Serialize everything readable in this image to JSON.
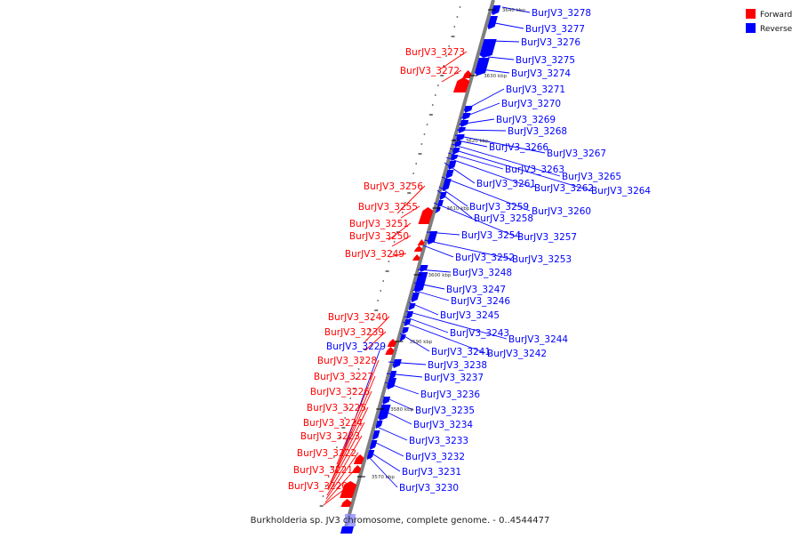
{
  "caption": "Burkholderia sp. JV3 chromosome, complete genome. - 0..4544477",
  "colors": {
    "forward": "#ff0000",
    "reverse": "#0000ff",
    "axis": "#7f7f7f",
    "tick": "#000000"
  },
  "legend": [
    {
      "label": "Forward",
      "color": "#ff0000"
    },
    {
      "label": "Reverse",
      "color": "#0000ff"
    }
  ],
  "scale_ticks": [
    "3640 kbp",
    "3630 kbp",
    "3620 kbp",
    "3610 kbp",
    "3600 kbp",
    "3590 kbp",
    "3580 kbp",
    "3570 kbp"
  ],
  "reverse_genes": [
    "BurJV3_3278",
    "BurJV3_3277",
    "BurJV3_3276",
    "BurJV3_3275",
    "BurJV3_3274",
    "BurJV3_3271",
    "BurJV3_3270",
    "BurJV3_3269",
    "BurJV3_3268",
    "BurJV3_3267",
    "BurJV3_3266",
    "BurJV3_3265",
    "BurJV3_3264",
    "BurJV3_3263",
    "BurJV3_3262",
    "BurJV3_3261",
    "BurJV3_3260",
    "BurJV3_3259",
    "BurJV3_3258",
    "BurJV3_3257",
    "BurJV3_3254",
    "BurJV3_3253",
    "BurJV3_3252",
    "BurJV3_3248",
    "BurJV3_3247",
    "BurJV3_3246",
    "BurJV3_3245",
    "BurJV3_3244",
    "BurJV3_3243",
    "BurJV3_3242",
    "BurJV3_3241",
    "BurJV3_3238",
    "BurJV3_3237",
    "BurJV3_3236",
    "BurJV3_3235",
    "BurJV3_3234",
    "BurJV3_3233",
    "BurJV3_3232",
    "BurJV3_3231",
    "BurJV3_3230",
    "BurJV3_3229"
  ],
  "forward_genes": [
    "BurJV3_3273",
    "BurJV3_3272",
    "BurJV3_3256",
    "BurJV3_3255",
    "BurJV3_3251",
    "BurJV3_3250",
    "BurJV3_3249",
    "BurJV3_3240",
    "BurJV3_3239",
    "BurJV3_3228",
    "BurJV3_3227",
    "BurJV3_3226",
    "BurJV3_3225",
    "BurJV3_3224",
    "BurJV3_3223",
    "BurJV3_3222",
    "BurJV3_3221",
    "BurJV3_3220"
  ]
}
